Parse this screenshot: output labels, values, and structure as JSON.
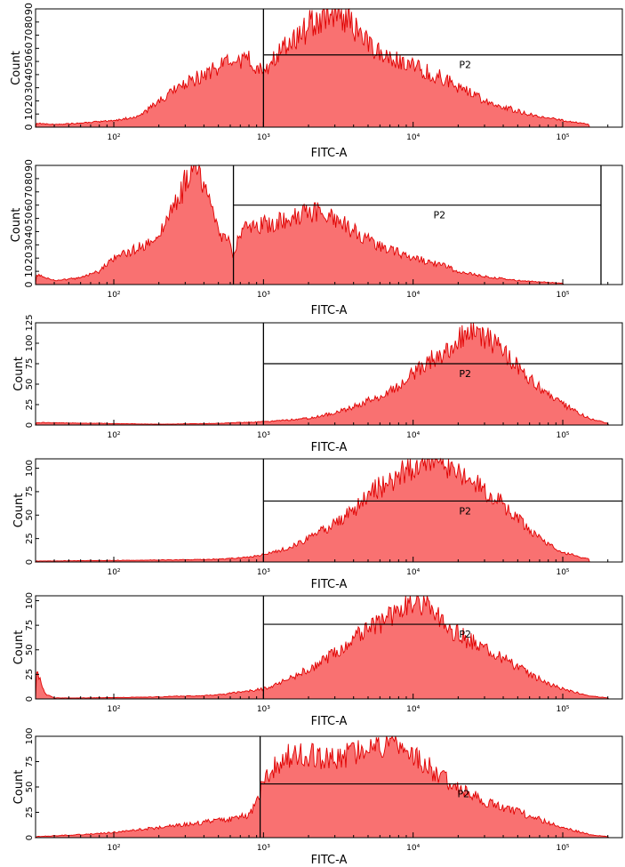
{
  "colors": {
    "fill": "#f97171",
    "stroke": "#e00000",
    "frame": "#000000",
    "gate": "#000000"
  },
  "chart_data": [
    {
      "type": "area",
      "scale_x": "log",
      "xlim": [
        30,
        250000
      ],
      "ylim": [
        0,
        90
      ],
      "xlabel": "FITC-A",
      "ylabel": "Count",
      "x_ticks": [
        {
          "value": 100,
          "label": "10²"
        },
        {
          "value": 1000,
          "label": "10³"
        },
        {
          "value": 10000,
          "label": "10⁴"
        },
        {
          "value": 100000,
          "label": "10⁵"
        }
      ],
      "y_ticks": [
        {
          "value": 0,
          "label": "0"
        },
        {
          "value": 10,
          "label": "10"
        },
        {
          "value": 20,
          "label": "20"
        },
        {
          "value": 30,
          "label": "30"
        },
        {
          "value": 40,
          "label": "40"
        },
        {
          "value": 50,
          "label": "50"
        },
        {
          "value": 60,
          "label": "60"
        },
        {
          "value": 70,
          "label": "70"
        },
        {
          "value": 80,
          "label": "80"
        },
        {
          "value": 90,
          "label": "90"
        }
      ],
      "gate": {
        "label": "P2",
        "x_start": 1000,
        "x_end": 250000,
        "y_level": 55
      },
      "x": [
        30,
        40,
        60,
        100,
        150,
        200,
        300,
        400,
        600,
        800,
        1000,
        1200,
        1500,
        2000,
        2500,
        3000,
        4000,
        5000,
        7000,
        10000,
        15000,
        20000,
        30000,
        50000,
        70000,
        100000,
        150000
      ],
      "y": [
        3,
        2,
        3,
        5,
        8,
        20,
        32,
        40,
        48,
        50,
        40,
        55,
        62,
        75,
        85,
        88,
        75,
        62,
        52,
        45,
        38,
        30,
        20,
        12,
        8,
        5,
        2
      ]
    },
    {
      "type": "area",
      "scale_x": "log",
      "xlim": [
        30,
        250000
      ],
      "ylim": [
        0,
        90
      ],
      "xlabel": "FITC-A",
      "ylabel": "Count",
      "x_ticks": [
        {
          "value": 100,
          "label": "10²"
        },
        {
          "value": 1000,
          "label": "10³"
        },
        {
          "value": 10000,
          "label": "10⁴"
        },
        {
          "value": 100000,
          "label": "10⁵"
        }
      ],
      "y_ticks": [
        {
          "value": 0,
          "label": "0"
        },
        {
          "value": 10,
          "label": "10"
        },
        {
          "value": 20,
          "label": "20"
        },
        {
          "value": 30,
          "label": "30"
        },
        {
          "value": 40,
          "label": "40"
        },
        {
          "value": 50,
          "label": "50"
        },
        {
          "value": 60,
          "label": "60"
        },
        {
          "value": 70,
          "label": "70"
        },
        {
          "value": 80,
          "label": "80"
        },
        {
          "value": 90,
          "label": "90"
        }
      ],
      "gate": {
        "label": "P2",
        "x_start": 630,
        "x_end": 180000,
        "y_level": 60
      },
      "x": [
        30,
        40,
        60,
        80,
        100,
        150,
        200,
        250,
        300,
        350,
        400,
        450,
        500,
        600,
        630,
        700,
        1000,
        1500,
        2000,
        3000,
        4000,
        6000,
        10000,
        15000,
        20000,
        30000,
        50000,
        100000
      ],
      "y": [
        8,
        3,
        5,
        10,
        20,
        28,
        38,
        55,
        75,
        95,
        78,
        55,
        40,
        30,
        22,
        40,
        45,
        48,
        55,
        50,
        40,
        28,
        20,
        15,
        10,
        6,
        3,
        1
      ]
    },
    {
      "type": "area",
      "scale_x": "log",
      "xlim": [
        30,
        250000
      ],
      "ylim": [
        0,
        125
      ],
      "xlabel": "FITC-A",
      "ylabel": "Count",
      "x_ticks": [
        {
          "value": 100,
          "label": "10²"
        },
        {
          "value": 1000,
          "label": "10³"
        },
        {
          "value": 10000,
          "label": "10⁴"
        },
        {
          "value": 100000,
          "label": "10⁵"
        }
      ],
      "y_ticks": [
        {
          "value": 0,
          "label": "0"
        },
        {
          "value": 25,
          "label": "25"
        },
        {
          "value": 50,
          "label": "50"
        },
        {
          "value": 75,
          "label": "75"
        },
        {
          "value": 100,
          "label": "100"
        },
        {
          "value": 125,
          "label": "125"
        }
      ],
      "gate": {
        "label": "P2",
        "x_start": 1000,
        "x_end": 250000,
        "y_level": 75
      },
      "x": [
        30,
        200,
        500,
        1000,
        2000,
        3000,
        4000,
        6000,
        8000,
        10000,
        15000,
        20000,
        25000,
        30000,
        40000,
        50000,
        70000,
        100000,
        150000,
        200000
      ],
      "y": [
        3,
        1,
        2,
        4,
        8,
        15,
        22,
        35,
        48,
        62,
        85,
        100,
        118,
        105,
        90,
        70,
        45,
        25,
        8,
        2
      ]
    },
    {
      "type": "area",
      "scale_x": "log",
      "xlim": [
        30,
        250000
      ],
      "ylim": [
        0,
        110
      ],
      "xlabel": "FITC-A",
      "ylabel": "Count",
      "x_ticks": [
        {
          "value": 100,
          "label": "10²"
        },
        {
          "value": 1000,
          "label": "10³"
        },
        {
          "value": 10000,
          "label": "10⁴"
        },
        {
          "value": 100000,
          "label": "10⁵"
        }
      ],
      "y_ticks": [
        {
          "value": 0,
          "label": "0"
        },
        {
          "value": 25,
          "label": "25"
        },
        {
          "value": 50,
          "label": "50"
        },
        {
          "value": 75,
          "label": "75"
        },
        {
          "value": 100,
          "label": "100"
        }
      ],
      "gate": {
        "label": "P2",
        "x_start": 1000,
        "x_end": 250000,
        "y_level": 65
      },
      "x": [
        30,
        200,
        500,
        800,
        1000,
        1500,
        2000,
        3000,
        4000,
        5000,
        7000,
        10000,
        15000,
        20000,
        30000,
        40000,
        50000,
        70000,
        100000,
        150000
      ],
      "y": [
        1,
        2,
        3,
        5,
        8,
        15,
        25,
        40,
        55,
        70,
        85,
        100,
        110,
        95,
        75,
        60,
        45,
        25,
        10,
        3
      ]
    },
    {
      "type": "area",
      "scale_x": "log",
      "xlim": [
        30,
        250000
      ],
      "ylim": [
        0,
        105
      ],
      "xlabel": "FITC-A",
      "ylabel": "Count",
      "x_ticks": [
        {
          "value": 100,
          "label": "10²"
        },
        {
          "value": 1000,
          "label": "10³"
        },
        {
          "value": 10000,
          "label": "10⁴"
        },
        {
          "value": 100000,
          "label": "10⁵"
        }
      ],
      "y_ticks": [
        {
          "value": 0,
          "label": "0"
        },
        {
          "value": 25,
          "label": "25"
        },
        {
          "value": 50,
          "label": "50"
        },
        {
          "value": 75,
          "label": "75"
        },
        {
          "value": 100,
          "label": "100"
        }
      ],
      "gate": {
        "label": "P2",
        "x_start": 1000,
        "x_end": 250000,
        "y_level": 76
      },
      "x": [
        30,
        32,
        35,
        40,
        60,
        200,
        500,
        1000,
        1500,
        2000,
        3000,
        4000,
        6000,
        8000,
        10000,
        13000,
        15000,
        20000,
        30000,
        40000,
        60000,
        80000,
        100000,
        150000,
        200000
      ],
      "y": [
        30,
        20,
        5,
        1,
        1,
        2,
        4,
        10,
        20,
        30,
        45,
        60,
        75,
        90,
        100,
        95,
        80,
        65,
        50,
        40,
        25,
        15,
        10,
        3,
        1
      ]
    },
    {
      "type": "area",
      "scale_x": "log",
      "xlim": [
        30,
        250000
      ],
      "ylim": [
        0,
        100
      ],
      "xlabel": "FITC-A",
      "ylabel": "Count",
      "x_ticks": [
        {
          "value": 100,
          "label": "10²"
        },
        {
          "value": 1000,
          "label": "10³"
        },
        {
          "value": 10000,
          "label": "10⁴"
        },
        {
          "value": 100000,
          "label": "10⁵"
        }
      ],
      "y_ticks": [
        {
          "value": 0,
          "label": "0"
        },
        {
          "value": 25,
          "label": "25"
        },
        {
          "value": 50,
          "label": "50"
        },
        {
          "value": 75,
          "label": "75"
        },
        {
          "value": 100,
          "label": "100"
        }
      ],
      "gate": {
        "label": "P2",
        "x_start": 950,
        "x_end": 250000,
        "y_level": 53
      },
      "x": [
        30,
        60,
        100,
        200,
        400,
        600,
        800,
        900,
        1000,
        1200,
        1500,
        2000,
        3000,
        4000,
        6000,
        8000,
        10000,
        15000,
        20000,
        30000,
        50000,
        100000,
        150000,
        200000
      ],
      "y": [
        1,
        3,
        5,
        10,
        15,
        18,
        22,
        35,
        55,
        70,
        80,
        80,
        78,
        82,
        88,
        95,
        80,
        60,
        48,
        35,
        25,
        10,
        3,
        1
      ]
    }
  ]
}
